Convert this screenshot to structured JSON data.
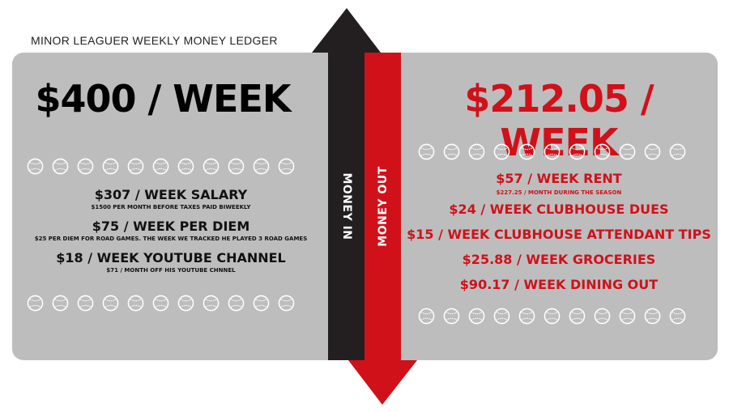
{
  "title": "MINOR LEAGUER WEEKLY MONEY LEDGER",
  "colors": {
    "money_in": "#231f20",
    "money_out": "#d0111a",
    "panel": "#bdbdbd"
  },
  "money_in": {
    "label": "MONEY IN",
    "total": "$400 / WEEK",
    "items": [
      {
        "main": "$307 / WEEK SALARY",
        "sub": "$1500 PER MONTH BEFORE TAXES PAID BIWEEKLY"
      },
      {
        "main": "$75 / WEEK PER DIEM",
        "sub": "$25 PER DIEM FOR ROAD GAMES.  THE WEEK WE TRACKED HE PLAYED 3 ROAD GAMES"
      },
      {
        "main": "$18 / WEEK YOUTUBE CHANNEL",
        "sub": "$71 / MONTH OFF HIS YOUTUBE CHNNEL"
      }
    ]
  },
  "money_out": {
    "label": "MONEY OUT",
    "total": "$212.05 / WEEK",
    "items": [
      {
        "main": "$57 / WEEK RENT",
        "sub": "$227.25 / MONTH DURING THE SEASON"
      },
      {
        "main": "$24 / WEEK CLUBHOUSE DUES"
      },
      {
        "main": "$15 / WEEK CLUBHOUSE ATTENDANT TIPS"
      },
      {
        "main": "$25.88 / WEEK GROCERIES"
      },
      {
        "main": "$90.17 / WEEK DINING OUT"
      }
    ]
  },
  "icons": {
    "decoration": "baseball-icon"
  }
}
